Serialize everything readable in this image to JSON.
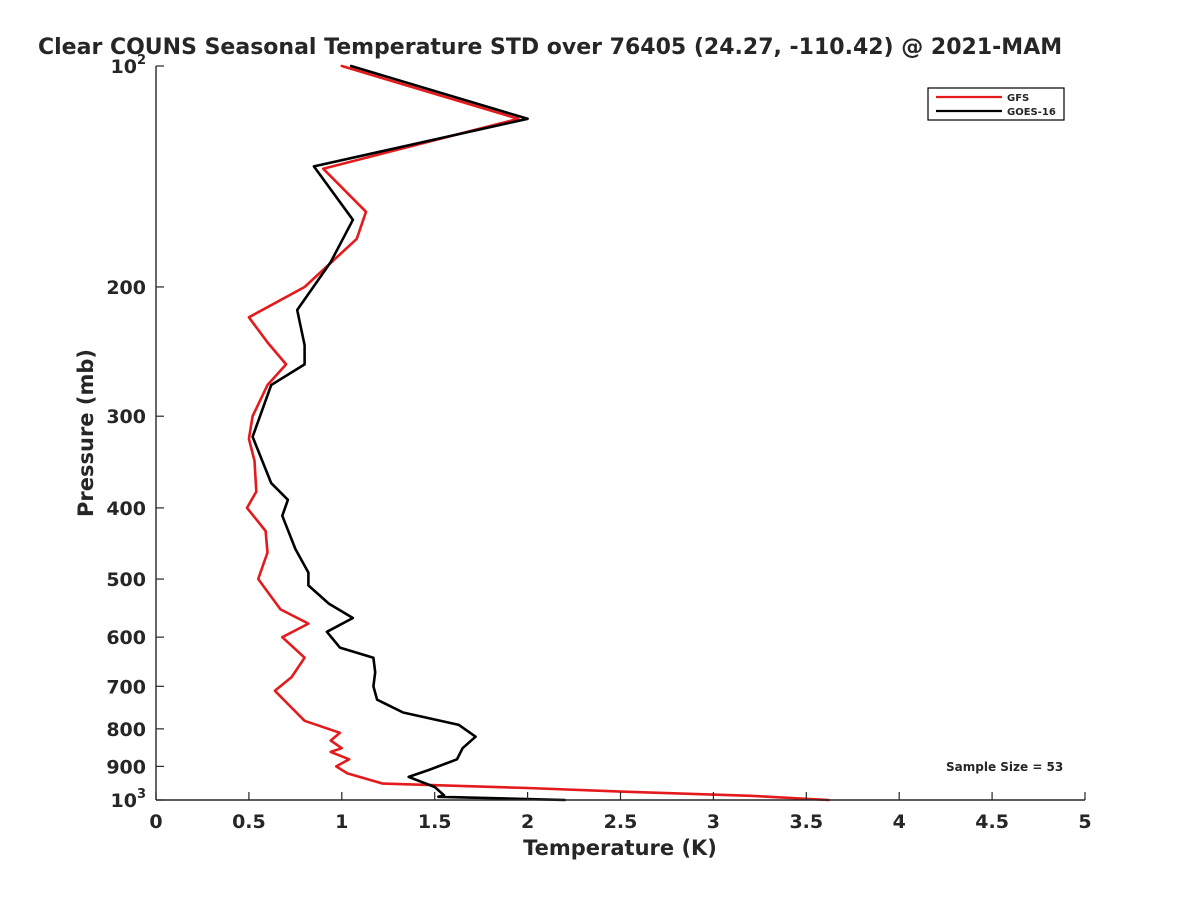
{
  "chart_data": {
    "type": "line",
    "title": "Clear COUNS Seasonal Temperature STD over 76405 (24.27, -110.42) @ 2021-MAM",
    "xlabel": "Temperature (K)",
    "ylabel": "Pressure (mb)",
    "xlim": [
      0,
      5
    ],
    "ylim": [
      1000,
      100
    ],
    "y_scale": "log",
    "y_reversed": true,
    "grid": false,
    "legend_position": "top-right",
    "x_ticks": [
      0,
      0.5,
      1,
      1.5,
      2,
      2.5,
      3,
      3.5,
      4,
      4.5,
      5
    ],
    "x_tick_labels": [
      "0",
      "0.5",
      "1",
      "1.5",
      "2",
      "2.5",
      "3",
      "3.5",
      "4",
      "4.5",
      "5"
    ],
    "y_ticks": [
      {
        "value": 100,
        "base": "10",
        "exp": "2"
      },
      {
        "value": 200,
        "label": "200"
      },
      {
        "value": 300,
        "label": "300"
      },
      {
        "value": 400,
        "label": "400"
      },
      {
        "value": 500,
        "label": "500"
      },
      {
        "value": 600,
        "label": "600"
      },
      {
        "value": 700,
        "label": "700"
      },
      {
        "value": 800,
        "label": "800"
      },
      {
        "value": 900,
        "label": "900"
      },
      {
        "value": 1000,
        "base": "10",
        "exp": "3"
      }
    ],
    "annotation": "Sample Size = 53",
    "series": [
      {
        "name": "GFS",
        "color": "#e41a1c",
        "points": [
          [
            1.0,
            100
          ],
          [
            1.95,
            118
          ],
          [
            0.9,
            138
          ],
          [
            1.13,
            158
          ],
          [
            1.08,
            172
          ],
          [
            0.8,
            200
          ],
          [
            0.5,
            220
          ],
          [
            0.6,
            238
          ],
          [
            0.7,
            255
          ],
          [
            0.6,
            272
          ],
          [
            0.52,
            300
          ],
          [
            0.5,
            322
          ],
          [
            0.53,
            345
          ],
          [
            0.54,
            380
          ],
          [
            0.49,
            400
          ],
          [
            0.59,
            430
          ],
          [
            0.6,
            460
          ],
          [
            0.55,
            500
          ],
          [
            0.67,
            550
          ],
          [
            0.82,
            575
          ],
          [
            0.68,
            600
          ],
          [
            0.8,
            640
          ],
          [
            0.73,
            680
          ],
          [
            0.64,
            710
          ],
          [
            0.71,
            740
          ],
          [
            0.8,
            780
          ],
          [
            0.99,
            810
          ],
          [
            0.94,
            830
          ],
          [
            1.0,
            850
          ],
          [
            0.94,
            860
          ],
          [
            1.04,
            880
          ],
          [
            0.97,
            900
          ],
          [
            1.03,
            920
          ],
          [
            1.22,
            950
          ],
          [
            2.0,
            963
          ],
          [
            2.5,
            974
          ],
          [
            3.2,
            987
          ],
          [
            3.62,
            1000
          ]
        ]
      },
      {
        "name": "GOES-16",
        "color": "#000000",
        "points": [
          [
            1.05,
            100
          ],
          [
            2.0,
            118
          ],
          [
            0.85,
            137
          ],
          [
            1.06,
            162
          ],
          [
            0.94,
            185
          ],
          [
            0.76,
            215
          ],
          [
            0.8,
            240
          ],
          [
            0.8,
            255
          ],
          [
            0.62,
            272
          ],
          [
            0.52,
            320
          ],
          [
            0.62,
            370
          ],
          [
            0.71,
            390
          ],
          [
            0.68,
            410
          ],
          [
            0.75,
            455
          ],
          [
            0.82,
            490
          ],
          [
            0.82,
            510
          ],
          [
            0.93,
            540
          ],
          [
            1.06,
            565
          ],
          [
            0.92,
            590
          ],
          [
            0.99,
            620
          ],
          [
            1.17,
            640
          ],
          [
            1.18,
            670
          ],
          [
            1.17,
            700
          ],
          [
            1.19,
            730
          ],
          [
            1.33,
            760
          ],
          [
            1.63,
            790
          ],
          [
            1.72,
            820
          ],
          [
            1.65,
            850
          ],
          [
            1.62,
            880
          ],
          [
            1.47,
            910
          ],
          [
            1.36,
            930
          ],
          [
            1.5,
            960
          ],
          [
            1.55,
            985
          ],
          [
            1.52,
            990
          ],
          [
            2.2,
            1000
          ]
        ]
      }
    ]
  }
}
